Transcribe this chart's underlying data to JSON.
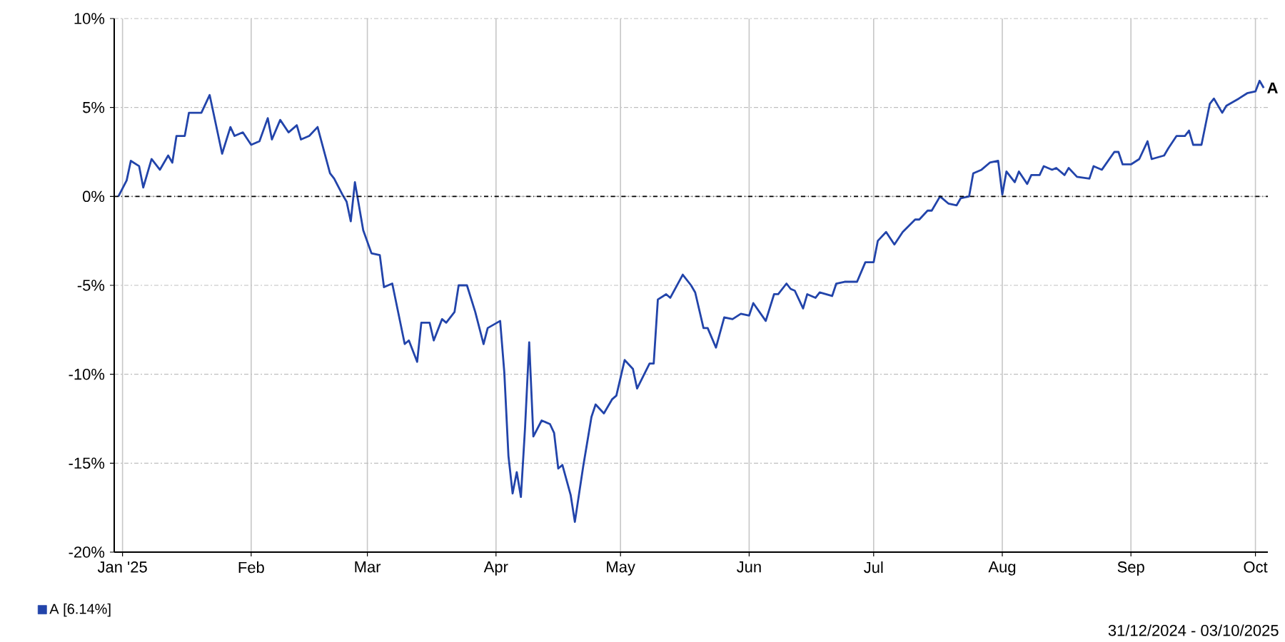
{
  "chart_data": {
    "type": "line",
    "x": [
      "2024-12-31",
      "2025-01-02",
      "2025-01-03",
      "2025-01-05",
      "2025-01-06",
      "2025-01-08",
      "2025-01-10",
      "2025-01-12",
      "2025-01-13",
      "2025-01-14",
      "2025-01-16",
      "2025-01-17",
      "2025-01-20",
      "2025-01-22",
      "2025-01-25",
      "2025-01-27",
      "2025-01-28",
      "2025-01-30",
      "2025-02-01",
      "2025-02-03",
      "2025-02-05",
      "2025-02-06",
      "2025-02-08",
      "2025-02-10",
      "2025-02-12",
      "2025-02-13",
      "2025-02-15",
      "2025-02-17",
      "2025-02-20",
      "2025-02-21",
      "2025-02-23",
      "2025-02-24",
      "2025-02-25",
      "2025-02-26",
      "2025-02-28",
      "2025-03-02",
      "2025-03-04",
      "2025-03-05",
      "2025-03-07",
      "2025-03-10",
      "2025-03-11",
      "2025-03-13",
      "2025-03-14",
      "2025-03-16",
      "2025-03-17",
      "2025-03-19",
      "2025-03-20",
      "2025-03-22",
      "2025-03-23",
      "2025-03-25",
      "2025-03-27",
      "2025-03-29",
      "2025-03-30",
      "2025-04-02",
      "2025-04-03",
      "2025-04-04",
      "2025-04-05",
      "2025-04-06",
      "2025-04-07",
      "2025-04-08",
      "2025-04-09",
      "2025-04-10",
      "2025-04-12",
      "2025-04-14",
      "2025-04-15",
      "2025-04-16",
      "2025-04-17",
      "2025-04-19",
      "2025-04-20",
      "2025-04-22",
      "2025-04-24",
      "2025-04-25",
      "2025-04-27",
      "2025-04-29",
      "2025-04-30",
      "2025-05-02",
      "2025-05-04",
      "2025-05-05",
      "2025-05-08",
      "2025-05-09",
      "2025-05-10",
      "2025-05-12",
      "2025-05-13",
      "2025-05-16",
      "2025-05-18",
      "2025-05-19",
      "2025-05-21",
      "2025-05-22",
      "2025-05-24",
      "2025-05-26",
      "2025-05-28",
      "2025-05-30",
      "2025-06-01",
      "2025-06-02",
      "2025-06-05",
      "2025-06-07",
      "2025-06-08",
      "2025-06-10",
      "2025-06-11",
      "2025-06-12",
      "2025-06-14",
      "2025-06-15",
      "2025-06-17",
      "2025-06-18",
      "2025-06-21",
      "2025-06-22",
      "2025-06-24",
      "2025-06-27",
      "2025-06-29",
      "2025-07-01",
      "2025-07-02",
      "2025-07-04",
      "2025-07-06",
      "2025-07-08",
      "2025-07-11",
      "2025-07-12",
      "2025-07-14",
      "2025-07-15",
      "2025-07-17",
      "2025-07-19",
      "2025-07-21",
      "2025-07-22",
      "2025-07-24",
      "2025-07-25",
      "2025-07-27",
      "2025-07-29",
      "2025-07-31",
      "2025-08-01",
      "2025-08-02",
      "2025-08-04",
      "2025-08-05",
      "2025-08-07",
      "2025-08-08",
      "2025-08-10",
      "2025-08-11",
      "2025-08-13",
      "2025-08-14",
      "2025-08-16",
      "2025-08-17",
      "2025-08-19",
      "2025-08-22",
      "2025-08-23",
      "2025-08-25",
      "2025-08-28",
      "2025-08-29",
      "2025-08-30",
      "2025-09-01",
      "2025-09-03",
      "2025-09-05",
      "2025-09-06",
      "2025-09-09",
      "2025-09-10",
      "2025-09-12",
      "2025-09-14",
      "2025-09-15",
      "2025-09-16",
      "2025-09-18",
      "2025-09-20",
      "2025-09-21",
      "2025-09-23",
      "2025-09-24",
      "2025-09-27",
      "2025-09-29",
      "2025-10-01",
      "2025-10-02",
      "2025-10-03"
    ],
    "series": [
      {
        "name": "A [6.14%]",
        "color": "#2244aa",
        "values": [
          0,
          0.9,
          2.0,
          1.7,
          0.5,
          2.1,
          1.5,
          2.3,
          1.9,
          3.4,
          3.4,
          4.7,
          4.7,
          5.7,
          2.4,
          3.9,
          3.4,
          3.6,
          2.9,
          3.1,
          4.4,
          3.2,
          4.3,
          3.6,
          4.0,
          3.2,
          3.4,
          3.9,
          1.3,
          1.0,
          0.1,
          -0.3,
          -1.4,
          0.8,
          -1.9,
          -3.2,
          -3.3,
          -5.1,
          -4.9,
          -8.3,
          -8.1,
          -9.3,
          -7.1,
          -7.1,
          -8.1,
          -6.9,
          -7.1,
          -6.5,
          -5.0,
          -5.0,
          -6.5,
          -8.3,
          -7.4,
          -7.0,
          -9.9,
          -14.6,
          -16.7,
          -15.5,
          -16.9,
          -13.0,
          -8.2,
          -13.5,
          -12.6,
          -12.8,
          -13.3,
          -15.3,
          -15.1,
          -16.8,
          -18.3,
          -15.2,
          -12.4,
          -11.7,
          -12.2,
          -11.4,
          -11.2,
          -9.2,
          -9.7,
          -10.8,
          -9.4,
          -9.4,
          -5.8,
          -5.5,
          -5.7,
          -4.4,
          -5.0,
          -5.4,
          -7.4,
          -7.4,
          -8.5,
          -6.8,
          -6.9,
          -6.6,
          -6.7,
          -6.0,
          -7.0,
          -5.5,
          -5.5,
          -4.9,
          -5.2,
          -5.3,
          -6.3,
          -5.5,
          -5.7,
          -5.4,
          -5.6,
          -4.9,
          -4.8,
          -4.8,
          -3.7,
          -3.7,
          -2.5,
          -2.0,
          -2.7,
          -2.0,
          -1.3,
          -1.3,
          -0.8,
          -0.8,
          0.0,
          -0.4,
          -0.5,
          -0.1,
          0.0,
          1.3,
          1.5,
          1.9,
          2.0,
          0.1,
          1.4,
          0.8,
          1.4,
          0.7,
          1.2,
          1.2,
          1.7,
          1.5,
          1.6,
          1.2,
          1.6,
          1.1,
          1.0,
          1.7,
          1.5,
          2.5,
          2.5,
          1.8,
          1.8,
          2.1,
          3.1,
          2.1,
          2.3,
          2.7,
          3.4,
          3.4,
          3.7,
          2.9,
          2.9,
          5.2,
          5.5,
          4.7,
          5.1,
          5.5,
          5.8,
          5.9,
          6.5,
          6.1
        ]
      }
    ],
    "xlim": [
      "2024-12-30",
      "2025-10-04"
    ],
    "xticks": [
      {
        "value": "2025-01-01",
        "label": "Jan '25"
      },
      {
        "value": "2025-02-01",
        "label": "Feb"
      },
      {
        "value": "2025-03-01",
        "label": "Mar"
      },
      {
        "value": "2025-04-01",
        "label": "Apr"
      },
      {
        "value": "2025-05-01",
        "label": "May"
      },
      {
        "value": "2025-06-01",
        "label": "Jun"
      },
      {
        "value": "2025-07-01",
        "label": "Jul"
      },
      {
        "value": "2025-08-01",
        "label": "Aug"
      },
      {
        "value": "2025-09-01",
        "label": "Sep"
      },
      {
        "value": "2025-10-01",
        "label": "Oct"
      }
    ],
    "ylim": [
      -20,
      10
    ],
    "yticks": [
      {
        "value": -20,
        "label": "-20%"
      },
      {
        "value": -15,
        "label": "-15%"
      },
      {
        "value": -10,
        "label": "-10%"
      },
      {
        "value": -5,
        "label": "-5%"
      },
      {
        "value": 0,
        "label": "0%"
      },
      {
        "value": 5,
        "label": "5%"
      },
      {
        "value": 10,
        "label": "10%"
      }
    ],
    "ref_lines": [
      {
        "axis": "y",
        "value": 0,
        "color": "#000000",
        "line_style": "dashdotted"
      }
    ],
    "annotations": [
      {
        "text": "A",
        "x": "2025-10-03",
        "y": 6.1
      },
      "31/12/2024 - 03/10/2025"
    ],
    "grid": true,
    "legend": "bottom left",
    "line_style": "solid",
    "marker": "none"
  }
}
